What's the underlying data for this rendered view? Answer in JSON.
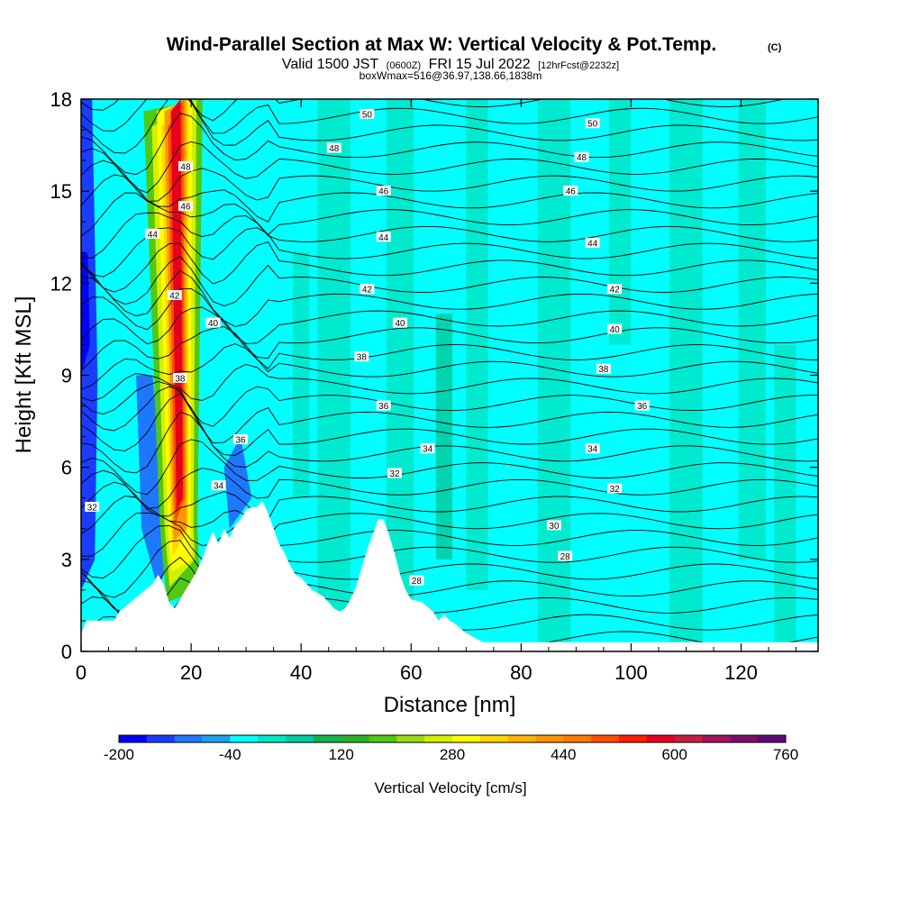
{
  "title": {
    "main": "Wind-Parallel Section at Max W: Vertical Velocity & Pot.Temp.",
    "copyright": "(C)",
    "valid_prefix": "Valid 1500 JST",
    "valid_utc": "(0600Z)",
    "valid_date": "FRI 15 Jul 2022",
    "forecast": "[12hrFcst@2232z]",
    "box": "boxWmax=516@36.97,138.66,1838m"
  },
  "chart_data": {
    "type": "heatmap",
    "xlabel": "Distance [nm]",
    "ylabel": "Height [Kft MSL]",
    "xlim": [
      0,
      134
    ],
    "ylim": [
      0,
      18
    ],
    "x_ticks": [
      "0",
      "20",
      "40",
      "60",
      "80",
      "100",
      "120"
    ],
    "x_tick_values": [
      0,
      20,
      40,
      60,
      80,
      100,
      120
    ],
    "y_ticks": [
      "0",
      "3",
      "6",
      "9",
      "12",
      "15",
      "18"
    ],
    "y_tick_values": [
      0,
      3,
      6,
      9,
      12,
      15,
      18
    ],
    "colorbar": {
      "title": "Vertical Velocity [cm/s]",
      "labels": [
        "-200",
        "-40",
        "120",
        "280",
        "440",
        "600",
        "760"
      ],
      "colors": [
        "#0000ff",
        "#1a3cff",
        "#1e78ff",
        "#1ea0f0",
        "#00ffff",
        "#00e6c8",
        "#00cca0",
        "#14b450",
        "#28b428",
        "#50c814",
        "#9bdc14",
        "#d2f000",
        "#ffff00",
        "#ffd700",
        "#ffb400",
        "#ff9600",
        "#ff7800",
        "#ff5000",
        "#ff1e00",
        "#e6001e",
        "#c81e46",
        "#a0145a",
        "#7d0f6e",
        "#5f0a78"
      ]
    },
    "terrain_kft": [
      [
        0,
        0.6
      ],
      [
        1,
        1.0
      ],
      [
        3,
        1.0
      ],
      [
        6,
        1.0
      ],
      [
        7,
        1.3
      ],
      [
        9,
        1.6
      ],
      [
        11,
        1.9
      ],
      [
        13,
        2.2
      ],
      [
        14,
        2.5
      ],
      [
        15,
        2.2
      ],
      [
        16,
        1.6
      ],
      [
        17,
        1.4
      ],
      [
        18,
        1.7
      ],
      [
        19,
        2.0
      ],
      [
        20,
        2.3
      ],
      [
        21,
        2.6
      ],
      [
        22,
        3.0
      ],
      [
        23,
        3.5
      ],
      [
        24,
        3.9
      ],
      [
        25,
        3.5
      ],
      [
        26,
        4.0
      ],
      [
        27,
        3.7
      ],
      [
        28,
        4.1
      ],
      [
        29,
        4.3
      ],
      [
        30,
        4.6
      ],
      [
        31,
        4.7
      ],
      [
        32,
        4.7
      ],
      [
        33,
        4.9
      ],
      [
        34,
        4.5
      ],
      [
        35,
        4.0
      ],
      [
        36,
        3.5
      ],
      [
        37,
        3.2
      ],
      [
        38,
        2.8
      ],
      [
        39,
        2.5
      ],
      [
        40,
        2.4
      ],
      [
        41,
        2.2
      ],
      [
        42,
        2.0
      ],
      [
        43,
        1.9
      ],
      [
        44,
        1.8
      ],
      [
        45,
        1.6
      ],
      [
        46,
        1.4
      ],
      [
        47,
        1.3
      ],
      [
        48,
        1.4
      ],
      [
        49,
        1.7
      ],
      [
        50,
        2.1
      ],
      [
        51,
        2.7
      ],
      [
        52,
        3.3
      ],
      [
        53,
        3.8
      ],
      [
        54,
        4.3
      ],
      [
        55,
        4.3
      ],
      [
        56,
        3.8
      ],
      [
        57,
        3.2
      ],
      [
        58,
        2.5
      ],
      [
        59,
        2.0
      ],
      [
        60,
        1.7
      ],
      [
        62,
        1.6
      ],
      [
        64,
        1.3
      ],
      [
        65,
        1.0
      ],
      [
        66,
        1.2
      ],
      [
        67,
        1.0
      ],
      [
        68,
        0.9
      ],
      [
        70,
        0.6
      ],
      [
        72,
        0.4
      ],
      [
        73,
        0.3
      ],
      [
        134,
        0.3
      ]
    ],
    "theta_contour_labels": [
      {
        "value": "50",
        "x": 52,
        "y": 17.5
      },
      {
        "value": "50",
        "x": 93,
        "y": 17.2
      },
      {
        "value": "48",
        "x": 46,
        "y": 16.4
      },
      {
        "value": "48",
        "x": 91,
        "y": 16.1
      },
      {
        "value": "48",
        "x": 19,
        "y": 15.8
      },
      {
        "value": "46",
        "x": 55,
        "y": 15.0
      },
      {
        "value": "46",
        "x": 89,
        "y": 15.0
      },
      {
        "value": "46",
        "x": 19,
        "y": 14.5
      },
      {
        "value": "44",
        "x": 55,
        "y": 13.5
      },
      {
        "value": "44",
        "x": 93,
        "y": 13.3
      },
      {
        "value": "44",
        "x": 13,
        "y": 13.6
      },
      {
        "value": "42",
        "x": 52,
        "y": 11.8
      },
      {
        "value": "42",
        "x": 97,
        "y": 11.8
      },
      {
        "value": "42",
        "x": 17,
        "y": 11.6
      },
      {
        "value": "40",
        "x": 58,
        "y": 10.7
      },
      {
        "value": "40",
        "x": 97,
        "y": 10.5
      },
      {
        "value": "40",
        "x": 24,
        "y": 10.7
      },
      {
        "value": "38",
        "x": 51,
        "y": 9.6
      },
      {
        "value": "38",
        "x": 95,
        "y": 9.2
      },
      {
        "value": "38",
        "x": 18,
        "y": 8.9
      },
      {
        "value": "36",
        "x": 55,
        "y": 8.0
      },
      {
        "value": "36",
        "x": 102,
        "y": 8.0
      },
      {
        "value": "36",
        "x": 29,
        "y": 6.9
      },
      {
        "value": "34",
        "x": 63,
        "y": 6.6
      },
      {
        "value": "34",
        "x": 93,
        "y": 6.6
      },
      {
        "value": "34",
        "x": 25,
        "y": 5.4
      },
      {
        "value": "32",
        "x": 57,
        "y": 5.8
      },
      {
        "value": "32",
        "x": 97,
        "y": 5.3
      },
      {
        "value": "32",
        "x": 2,
        "y": 4.7
      },
      {
        "value": "30",
        "x": 86,
        "y": 4.1
      },
      {
        "value": "28",
        "x": 88,
        "y": 3.1
      },
      {
        "value": "28",
        "x": 61,
        "y": 2.3
      }
    ]
  }
}
